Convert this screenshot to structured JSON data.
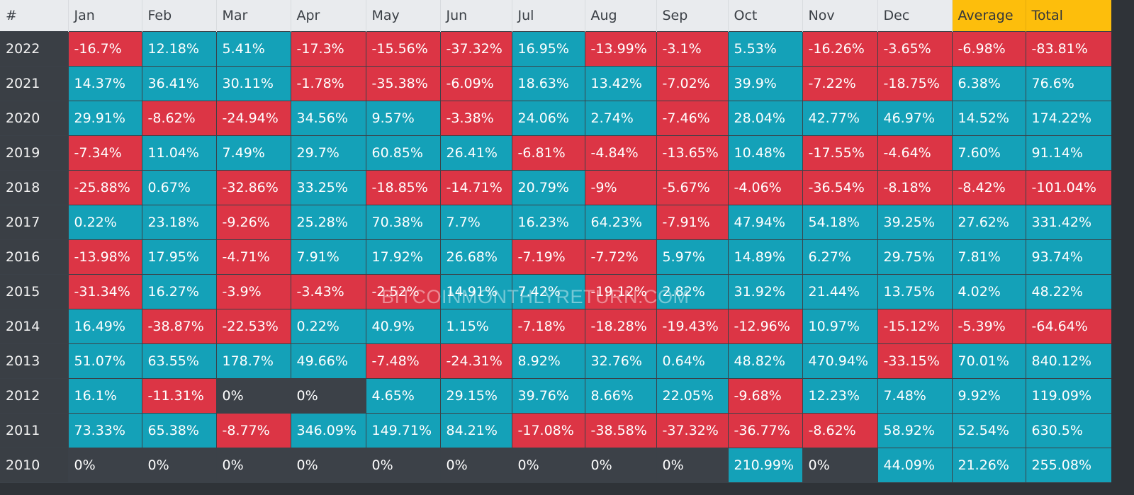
{
  "table": {
    "headers": [
      "#",
      "Jan",
      "Feb",
      "Mar",
      "Apr",
      "May",
      "Jun",
      "Jul",
      "Aug",
      "Sep",
      "Oct",
      "Nov",
      "Dec",
      "Average",
      "Total"
    ],
    "highlight_headers": [
      "Average",
      "Total"
    ],
    "rows": [
      {
        "year": "2022",
        "cells": [
          "-16.7%",
          "12.18%",
          "5.41%",
          "-17.3%",
          "-15.56%",
          "-37.32%",
          "16.95%",
          "-13.99%",
          "-3.1%",
          "5.53%",
          "-16.26%",
          "-3.65%",
          "-6.98%",
          "-83.81%"
        ]
      },
      {
        "year": "2021",
        "cells": [
          "14.37%",
          "36.41%",
          "30.11%",
          "-1.78%",
          "-35.38%",
          "-6.09%",
          "18.63%",
          "13.42%",
          "-7.02%",
          "39.9%",
          "-7.22%",
          "-18.75%",
          "6.38%",
          "76.6%"
        ]
      },
      {
        "year": "2020",
        "cells": [
          "29.91%",
          "-8.62%",
          "-24.94%",
          "34.56%",
          "9.57%",
          "-3.38%",
          "24.06%",
          "2.74%",
          "-7.46%",
          "28.04%",
          "42.77%",
          "46.97%",
          "14.52%",
          "174.22%"
        ]
      },
      {
        "year": "2019",
        "cells": [
          "-7.34%",
          "11.04%",
          "7.49%",
          "29.7%",
          "60.85%",
          "26.41%",
          "-6.81%",
          "-4.84%",
          "-13.65%",
          "10.48%",
          "-17.55%",
          "-4.64%",
          "7.60%",
          "91.14%"
        ]
      },
      {
        "year": "2018",
        "cells": [
          "-25.88%",
          "0.67%",
          "-32.86%",
          "33.25%",
          "-18.85%",
          "-14.71%",
          "20.79%",
          "-9%",
          "-5.67%",
          "-4.06%",
          "-36.54%",
          "-8.18%",
          "-8.42%",
          "-101.04%"
        ]
      },
      {
        "year": "2017",
        "cells": [
          "0.22%",
          "23.18%",
          "-9.26%",
          "25.28%",
          "70.38%",
          "7.7%",
          "16.23%",
          "64.23%",
          "-7.91%",
          "47.94%",
          "54.18%",
          "39.25%",
          "27.62%",
          "331.42%"
        ]
      },
      {
        "year": "2016",
        "cells": [
          "-13.98%",
          "17.95%",
          "-4.71%",
          "7.91%",
          "17.92%",
          "26.68%",
          "-7.19%",
          "-7.72%",
          "5.97%",
          "14.89%",
          "6.27%",
          "29.75%",
          "7.81%",
          "93.74%"
        ]
      },
      {
        "year": "2015",
        "cells": [
          "-31.34%",
          "16.27%",
          "-3.9%",
          "-3.43%",
          "-2.52%",
          "14.91%",
          "7.42%",
          "-19.12%",
          "2.82%",
          "31.92%",
          "21.44%",
          "13.75%",
          "4.02%",
          "48.22%"
        ]
      },
      {
        "year": "2014",
        "cells": [
          "16.49%",
          "-38.87%",
          "-22.53%",
          "0.22%",
          "40.9%",
          "1.15%",
          "-7.18%",
          "-18.28%",
          "-19.43%",
          "-12.96%",
          "10.97%",
          "-15.12%",
          "-5.39%",
          "-64.64%"
        ]
      },
      {
        "year": "2013",
        "cells": [
          "51.07%",
          "63.55%",
          "178.7%",
          "49.66%",
          "-7.48%",
          "-24.31%",
          "8.92%",
          "32.76%",
          "0.64%",
          "48.82%",
          "470.94%",
          "-33.15%",
          "70.01%",
          "840.12%"
        ]
      },
      {
        "year": "2012",
        "cells": [
          "16.1%",
          "-11.31%",
          "0%",
          "0%",
          "4.65%",
          "29.15%",
          "39.76%",
          "8.66%",
          "22.05%",
          "-9.68%",
          "12.23%",
          "7.48%",
          "9.92%",
          "119.09%"
        ]
      },
      {
        "year": "2011",
        "cells": [
          "73.33%",
          "65.38%",
          "-8.77%",
          "346.09%",
          "149.71%",
          "84.21%",
          "-17.08%",
          "-38.58%",
          "-37.32%",
          "-36.77%",
          "-8.62%",
          "58.92%",
          "52.54%",
          "630.5%"
        ]
      },
      {
        "year": "2010",
        "cells": [
          "0%",
          "0%",
          "0%",
          "0%",
          "0%",
          "0%",
          "0%",
          "0%",
          "0%",
          "210.99%",
          "0%",
          "44.09%",
          "21.26%",
          "255.08%"
        ]
      }
    ]
  },
  "watermark": "BITCOINMONTHLYRETURN.COM",
  "colors": {
    "positive": "#14a1b8",
    "negative": "#dc3545",
    "zero": "#3c4148",
    "header_bg": "#e9ebee",
    "highlight_header_bg": "#fdbe0c",
    "year_bg": "#3a3f45"
  },
  "chart_data": {
    "type": "heatmap",
    "title": "Bitcoin Monthly Returns",
    "x": [
      "Jan",
      "Feb",
      "Mar",
      "Apr",
      "May",
      "Jun",
      "Jul",
      "Aug",
      "Sep",
      "Oct",
      "Nov",
      "Dec",
      "Average",
      "Total"
    ],
    "y": [
      "2022",
      "2021",
      "2020",
      "2019",
      "2018",
      "2017",
      "2016",
      "2015",
      "2014",
      "2013",
      "2012",
      "2011",
      "2010"
    ],
    "values": [
      [
        -16.7,
        12.18,
        5.41,
        -17.3,
        -15.56,
        -37.32,
        16.95,
        -13.99,
        -3.1,
        5.53,
        -16.26,
        -3.65,
        -6.98,
        -83.81
      ],
      [
        14.37,
        36.41,
        30.11,
        -1.78,
        -35.38,
        -6.09,
        18.63,
        13.42,
        -7.02,
        39.9,
        -7.22,
        -18.75,
        6.38,
        76.6
      ],
      [
        29.91,
        -8.62,
        -24.94,
        34.56,
        9.57,
        -3.38,
        24.06,
        2.74,
        -7.46,
        28.04,
        42.77,
        46.97,
        14.52,
        174.22
      ],
      [
        -7.34,
        11.04,
        7.49,
        29.7,
        60.85,
        26.41,
        -6.81,
        -4.84,
        -13.65,
        10.48,
        -17.55,
        -4.64,
        7.6,
        91.14
      ],
      [
        -25.88,
        0.67,
        -32.86,
        33.25,
        -18.85,
        -14.71,
        20.79,
        -9,
        -5.67,
        -4.06,
        -36.54,
        -8.18,
        -8.42,
        -101.04
      ],
      [
        0.22,
        23.18,
        -9.26,
        25.28,
        70.38,
        7.7,
        16.23,
        64.23,
        -7.91,
        47.94,
        54.18,
        39.25,
        27.62,
        331.42
      ],
      [
        -13.98,
        17.95,
        -4.71,
        7.91,
        17.92,
        26.68,
        -7.19,
        -7.72,
        5.97,
        14.89,
        6.27,
        29.75,
        7.81,
        93.74
      ],
      [
        -31.34,
        16.27,
        -3.9,
        -3.43,
        -2.52,
        14.91,
        7.42,
        -19.12,
        2.82,
        31.92,
        21.44,
        13.75,
        4.02,
        48.22
      ],
      [
        16.49,
        -38.87,
        -22.53,
        0.22,
        40.9,
        1.15,
        -7.18,
        -18.28,
        -19.43,
        -12.96,
        10.97,
        -15.12,
        -5.39,
        -64.64
      ],
      [
        51.07,
        63.55,
        178.7,
        49.66,
        -7.48,
        -24.31,
        8.92,
        32.76,
        0.64,
        48.82,
        470.94,
        -33.15,
        70.01,
        840.12
      ],
      [
        16.1,
        -11.31,
        0,
        0,
        4.65,
        29.15,
        39.76,
        8.66,
        22.05,
        -9.68,
        12.23,
        7.48,
        9.92,
        119.09
      ],
      [
        73.33,
        65.38,
        -8.77,
        346.09,
        149.71,
        84.21,
        -17.08,
        -38.58,
        -37.32,
        -36.77,
        -8.62,
        58.92,
        52.54,
        630.5
      ],
      [
        0,
        0,
        0,
        0,
        0,
        0,
        0,
        0,
        0,
        210.99,
        0,
        44.09,
        21.26,
        255.08
      ]
    ],
    "unit": "%",
    "color_scale": {
      "positive": "#14a1b8",
      "negative": "#dc3545",
      "zero": "#3c4148"
    },
    "watermark": "BITCOINMONTHLYRETURN.COM"
  }
}
